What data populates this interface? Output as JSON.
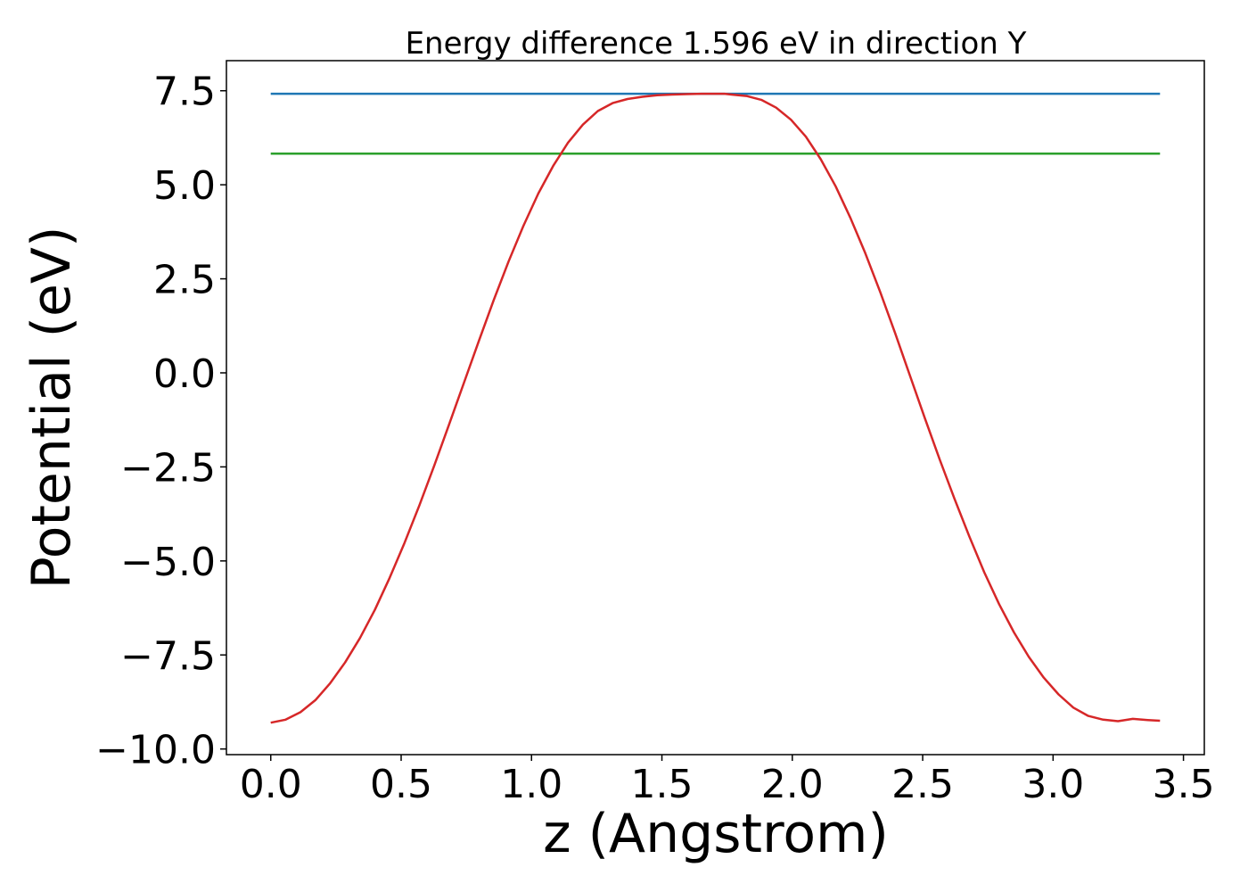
{
  "chart_data": {
    "type": "line",
    "title": "Energy difference 1.596 eV in direction Y",
    "xlabel": "z (Angstrom)",
    "ylabel": "Potential (eV)",
    "xlim": [
      -0.17,
      3.58
    ],
    "ylim": [
      -10.15,
      8.3
    ],
    "xticks": [
      0.0,
      0.5,
      1.0,
      1.5,
      2.0,
      2.5,
      3.0,
      3.5
    ],
    "xtick_labels": [
      "0.0",
      "0.5",
      "1.0",
      "1.5",
      "2.0",
      "2.5",
      "3.0",
      "3.5"
    ],
    "yticks": [
      -10.0,
      -7.5,
      -5.0,
      -2.5,
      0.0,
      2.5,
      5.0,
      7.5
    ],
    "ytick_labels": [
      "−10.0",
      "−7.5",
      "−5.0",
      "−2.5",
      "0.0",
      "2.5",
      "5.0",
      "7.5"
    ],
    "grid": false,
    "series": [
      {
        "color": "#1f77b4",
        "x": [
          0.0,
          3.41
        ],
        "y": [
          7.42,
          7.42
        ]
      },
      {
        "color": "#2ca02c",
        "x": [
          0.0,
          3.41
        ],
        "y": [
          5.83,
          5.83
        ]
      },
      {
        "color": "#d62728",
        "x": [
          0.0,
          0.057,
          0.114,
          0.171,
          0.228,
          0.285,
          0.342,
          0.399,
          0.456,
          0.513,
          0.57,
          0.627,
          0.684,
          0.741,
          0.798,
          0.855,
          0.912,
          0.969,
          1.026,
          1.083,
          1.14,
          1.197,
          1.254,
          1.311,
          1.368,
          1.425,
          1.482,
          1.539,
          1.596,
          1.653,
          1.71,
          1.74,
          1.767,
          1.824,
          1.881,
          1.938,
          1.995,
          2.052,
          2.109,
          2.166,
          2.223,
          2.28,
          2.337,
          2.394,
          2.451,
          2.508,
          2.565,
          2.622,
          2.679,
          2.736,
          2.793,
          2.85,
          2.907,
          2.964,
          3.021,
          3.078,
          3.135,
          3.192,
          3.249,
          3.306,
          3.363,
          3.41
        ],
        "y": [
          -9.3,
          -9.22,
          -9.02,
          -8.7,
          -8.25,
          -7.7,
          -7.05,
          -6.3,
          -5.45,
          -4.52,
          -3.52,
          -2.47,
          -1.37,
          -0.26,
          0.85,
          1.93,
          2.96,
          3.91,
          4.77,
          5.5,
          6.12,
          6.6,
          6.96,
          7.17,
          7.28,
          7.34,
          7.38,
          7.4,
          7.41,
          7.42,
          7.42,
          7.42,
          7.4,
          7.36,
          7.26,
          7.05,
          6.73,
          6.28,
          5.68,
          4.96,
          4.12,
          3.18,
          2.15,
          1.06,
          -0.07,
          -1.2,
          -2.3,
          -3.35,
          -4.35,
          -5.3,
          -6.15,
          -6.9,
          -7.55,
          -8.1,
          -8.55,
          -8.9,
          -9.12,
          -9.22,
          -9.26,
          -9.2,
          -9.23,
          -9.25
        ]
      }
    ]
  }
}
